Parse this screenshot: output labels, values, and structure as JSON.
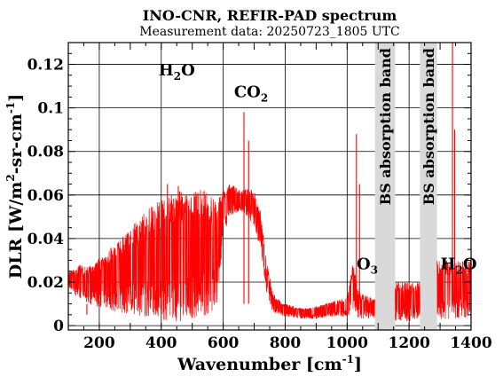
{
  "chart_data": {
    "type": "line",
    "title": "INO-CNR, REFIR-PAD spectrum",
    "subtitle": "Measurement data: 20250723_1805 UTC",
    "xlabel": {
      "main": "Wavenumber [cm",
      "sup": "-1",
      "end": "]"
    },
    "ylabel": {
      "p1": "DLR [W/m",
      "sup1": "2",
      "p2": "-sr-cm",
      "sup2": "-1",
      "p3": "]"
    },
    "xlim": [
      100,
      1400
    ],
    "ylim": [
      -0.002,
      0.13
    ],
    "xticks": [
      200,
      400,
      600,
      800,
      1000,
      1200,
      1400
    ],
    "xtick_labels": [
      "200",
      "400",
      "600",
      "800",
      "1000",
      "1200",
      "1400"
    ],
    "yticks": [
      0,
      0.02,
      0.04,
      0.06,
      0.08,
      0.1,
      0.12
    ],
    "ytick_labels": [
      "0",
      "0.02",
      "0.04",
      "0.06",
      "0.08",
      "0.1",
      "0.12"
    ],
    "grid": true,
    "line_color": "#ff0000",
    "band_color": "#d9d9d9",
    "bands": [
      {
        "x0": 1090,
        "x1": 1155,
        "label": "BS absorption band"
      },
      {
        "x0": 1235,
        "x1": 1290,
        "label": "BS absorption band"
      }
    ],
    "annotations": [
      {
        "base": "H",
        "sub": "2",
        "tail": "O",
        "x": 450,
        "y": 0.115
      },
      {
        "base": "CO",
        "sub": "2",
        "tail": "",
        "x": 690,
        "y": 0.105
      },
      {
        "base": "O",
        "sub": "3",
        "tail": "",
        "x": 1065,
        "y": 0.026
      },
      {
        "base": "H",
        "sub": "2",
        "tail": "O",
        "x": 1360,
        "y": 0.026
      }
    ],
    "series": [
      {
        "envelope_x": [
          100,
          120,
          140,
          160,
          180,
          200,
          220,
          240,
          260,
          280,
          300,
          320,
          340,
          360,
          380,
          400,
          420,
          440,
          460,
          480,
          500,
          520,
          540,
          560,
          580,
          600,
          620,
          640,
          660,
          680,
          700,
          720,
          740,
          760,
          780,
          800,
          850,
          900,
          950,
          1000,
          1020,
          1030,
          1040,
          1060,
          1090
        ],
        "envelope_hi": [
          0.025,
          0.026,
          0.028,
          0.027,
          0.028,
          0.031,
          0.033,
          0.036,
          0.039,
          0.042,
          0.045,
          0.048,
          0.051,
          0.054,
          0.056,
          0.058,
          0.06,
          0.061,
          0.062,
          0.062,
          0.061,
          0.062,
          0.063,
          0.06,
          0.057,
          0.062,
          0.065,
          0.064,
          0.062,
          0.063,
          0.062,
          0.053,
          0.03,
          0.015,
          0.012,
          0.01,
          0.008,
          0.009,
          0.011,
          0.013,
          0.03,
          0.02,
          0.015,
          0.014,
          0.012
        ],
        "envelope_lo": [
          0.018,
          0.014,
          0.012,
          0.01,
          0.009,
          0.008,
          0.008,
          0.007,
          0.006,
          0.006,
          0.005,
          0.005,
          0.004,
          0.004,
          0.003,
          0.003,
          0.002,
          0.002,
          0.002,
          0.002,
          0.003,
          0.003,
          0.004,
          0.006,
          0.01,
          0.04,
          0.05,
          0.052,
          0.052,
          0.05,
          0.045,
          0.035,
          0.015,
          0.006,
          0.005,
          0.004,
          0.003,
          0.003,
          0.004,
          0.004,
          0.006,
          0.004,
          0.003,
          0.003,
          0.003
        ],
        "spikes": [
          {
            "x": 160,
            "y": 0.005
          },
          {
            "x": 420,
            "y": 0.065
          },
          {
            "x": 455,
            "y": 0.064
          },
          {
            "x": 667,
            "y": 0.098
          },
          {
            "x": 682,
            "y": 0.085
          },
          {
            "x": 1030,
            "y": 0.088
          },
          {
            "x": 1040,
            "y": 0.065
          },
          {
            "x": 1340,
            "y": 0.13
          },
          {
            "x": 1347,
            "y": 0.09
          }
        ],
        "segment2_x": [
          1155,
          1235
        ],
        "segment2_hi": 0.02,
        "segment2_lo": 0.002,
        "segment3_x": [
          1290,
          1400
        ],
        "segment3_hi": 0.03,
        "segment3_lo": 0.003
      }
    ]
  }
}
